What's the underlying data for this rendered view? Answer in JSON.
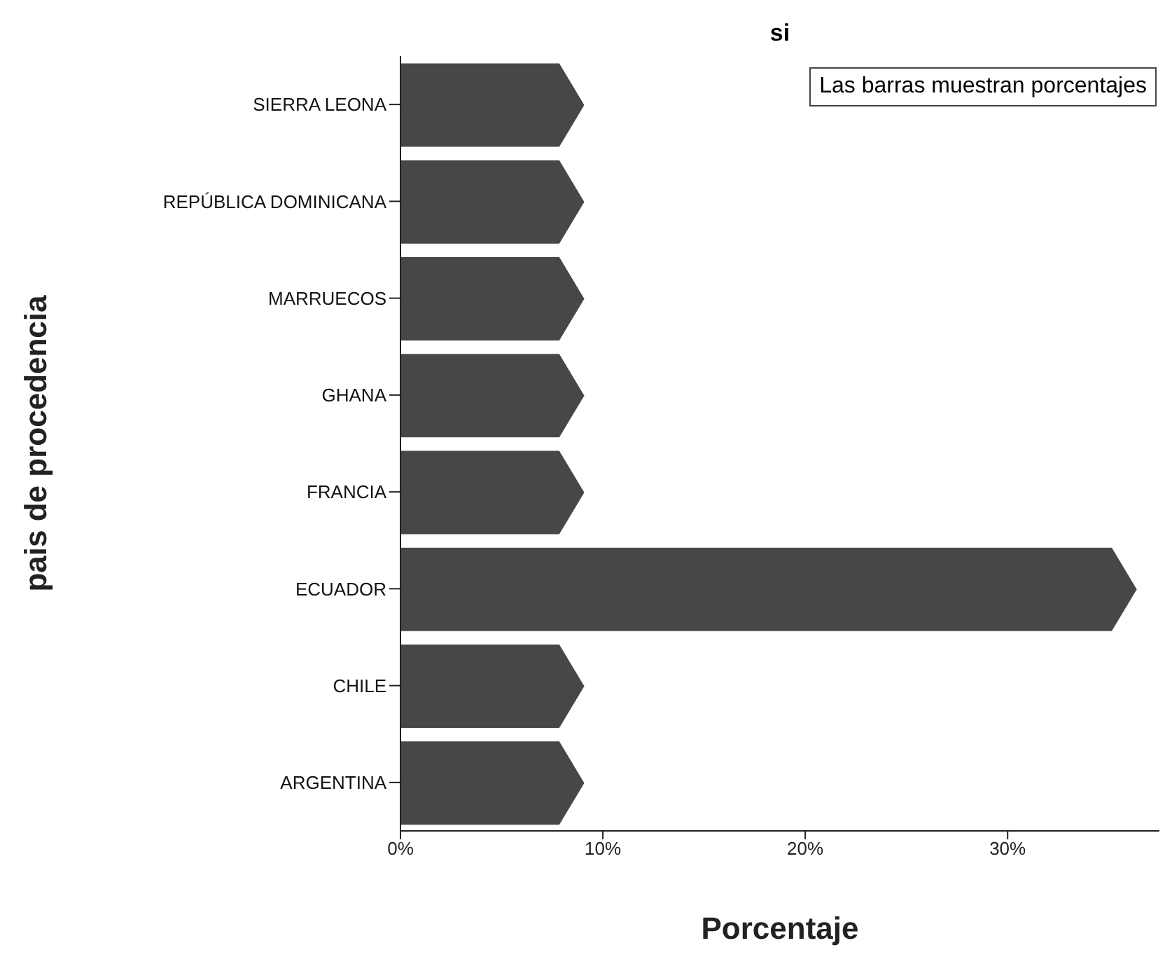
{
  "chart_data": {
    "type": "bar",
    "orientation": "horizontal",
    "title": "si",
    "xlabel": "Porcentaje",
    "ylabel": "pais de procedencia",
    "categories": [
      "SIERRA LEONA",
      "REPÚBLICA DOMINICANA",
      "MARRUECOS",
      "GHANA",
      "FRANCIA",
      "ECUADOR",
      "CHILE",
      "ARGENTINA"
    ],
    "values": [
      9.1,
      9.1,
      9.1,
      9.1,
      9.1,
      36.4,
      9.1,
      9.1
    ],
    "color": "#474747",
    "xlim": [
      0,
      37.5
    ],
    "xticks": [
      {
        "value": 0,
        "label": "0%"
      },
      {
        "value": 10,
        "label": "10%"
      },
      {
        "value": 20,
        "label": "20%"
      },
      {
        "value": 30,
        "label": "30%"
      }
    ],
    "annotations": [
      "Las barras muestran porcentajes"
    ],
    "grid": false,
    "legend": false
  }
}
